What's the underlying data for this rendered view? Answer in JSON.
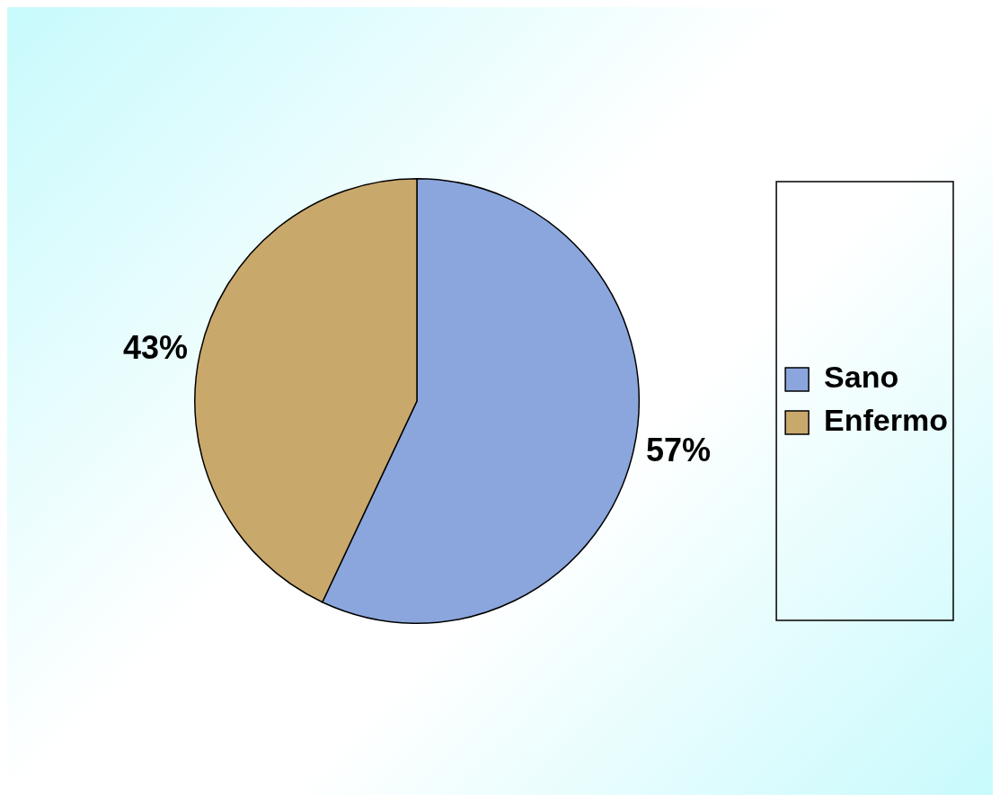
{
  "chart_data": {
    "type": "pie",
    "categories": [
      "Sano",
      "Enfermo"
    ],
    "values": [
      57,
      43
    ],
    "colors": [
      "#8aa6dc",
      "#c9a86c"
    ],
    "value_labels": [
      "57%",
      "43%"
    ],
    "legend": "right"
  }
}
